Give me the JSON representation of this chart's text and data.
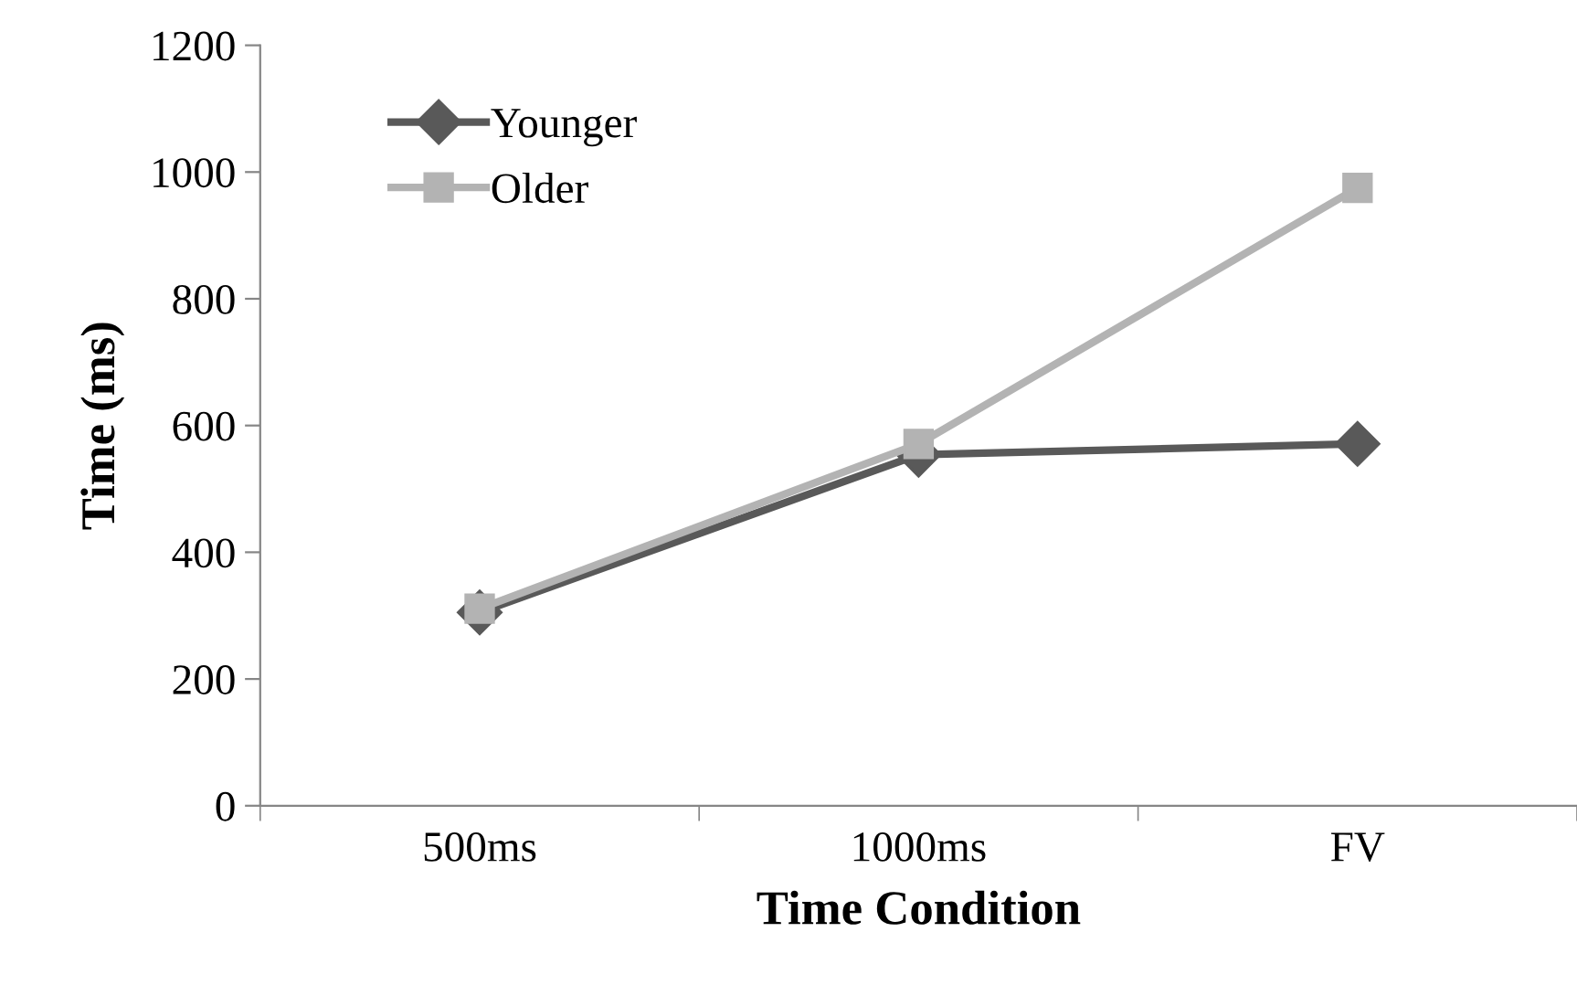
{
  "chart_data": {
    "type": "line",
    "xlabel": "Time Condition",
    "ylabel": "Time (ms)",
    "categories": [
      "500ms",
      "1000ms",
      "FV"
    ],
    "series": [
      {
        "name": "Younger",
        "color": "#595959",
        "marker": "diamond",
        "values": [
          305,
          554,
          571
        ]
      },
      {
        "name": "Older",
        "color": "#b3b3b3",
        "marker": "square",
        "values": [
          311,
          571,
          975
        ]
      }
    ],
    "ylim": [
      0,
      1200
    ],
    "yticks": [
      0,
      200,
      400,
      600,
      800,
      1000,
      1200
    ],
    "grid": false,
    "legend": "top left",
    "line_style": "solid"
  }
}
